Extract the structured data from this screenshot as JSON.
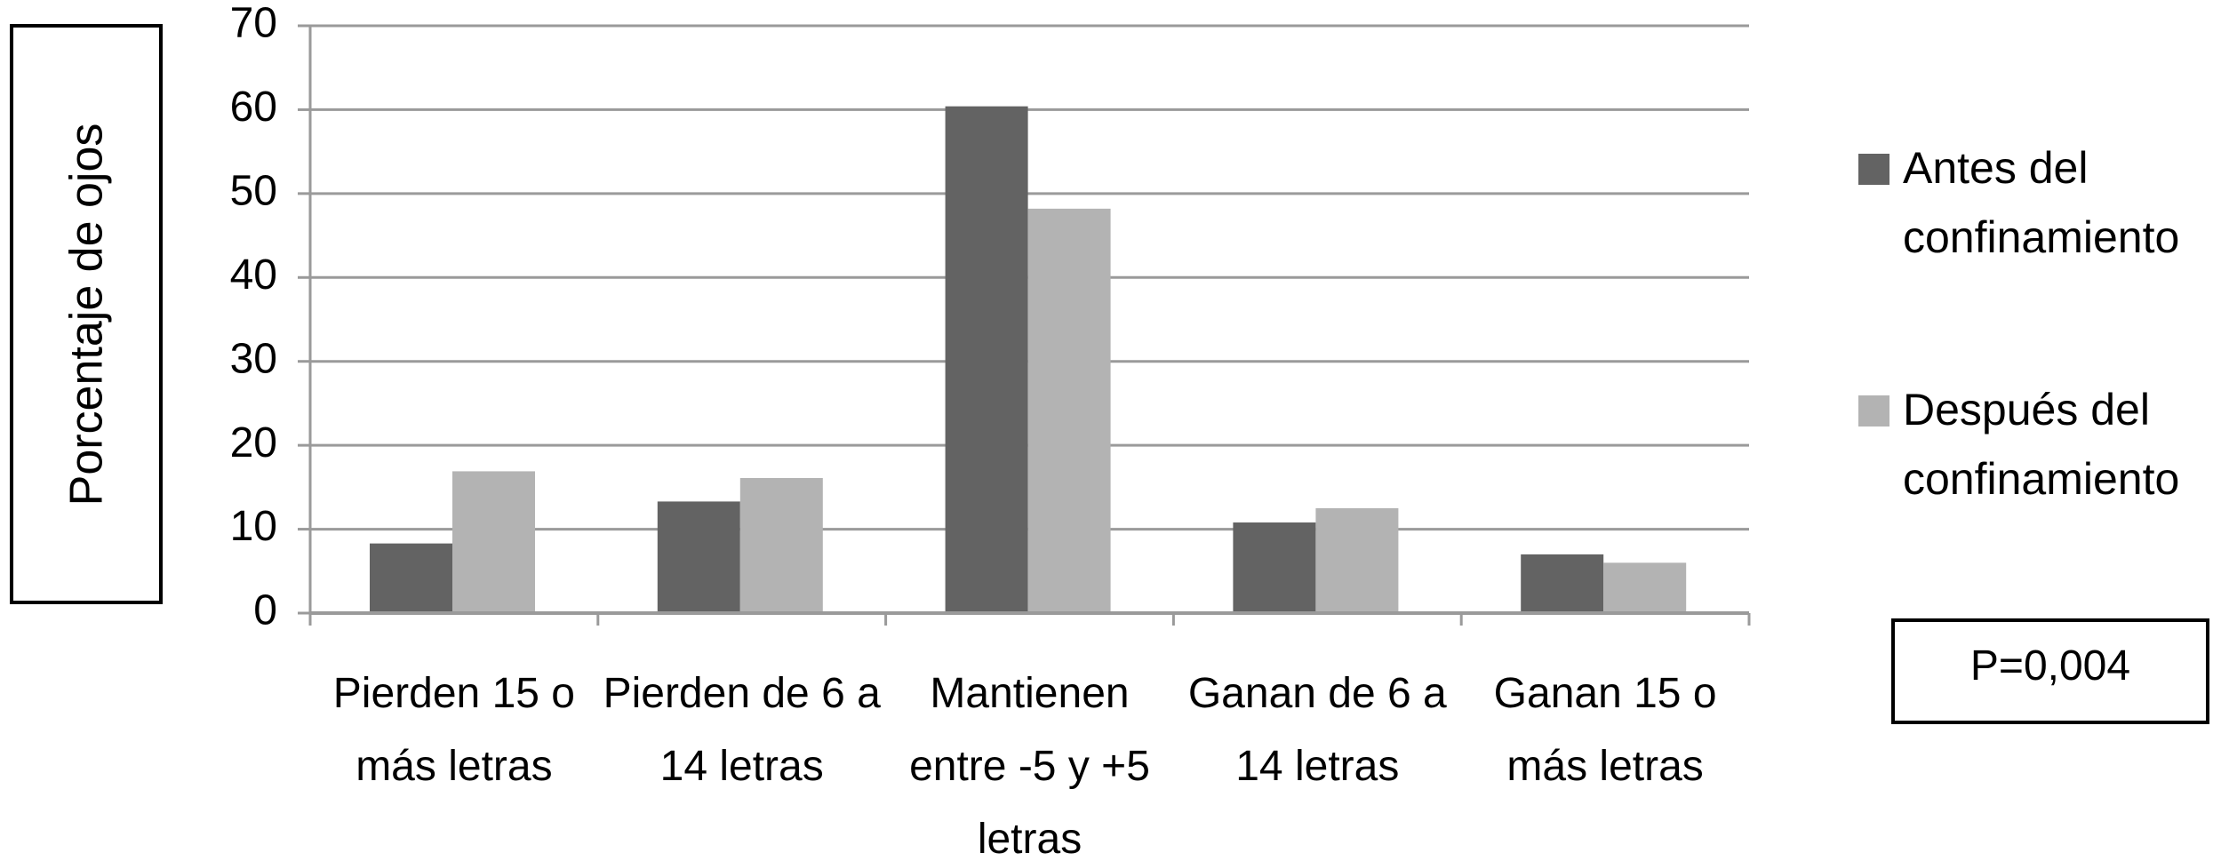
{
  "chart_data": {
    "type": "bar",
    "y_label": "Porcentaje de ojos",
    "annotation": "P=0,004",
    "categories": [
      "Pierden 15 o más letras",
      "Pierden de 6 a 14 letras",
      "Mantienen entre -5 y +5 letras",
      "Ganan de 6 a 14 letras",
      "Ganan 15 o más letras"
    ],
    "series": [
      {
        "name": "Antes del confinamiento",
        "color": "#636363",
        "values": [
          8.3,
          13.3,
          60.4,
          10.8,
          7.0
        ]
      },
      {
        "name": "Después del confinamiento",
        "color": "#b3b3b3",
        "values": [
          16.9,
          16.1,
          48.2,
          12.5,
          6.0
        ]
      }
    ],
    "ylim": [
      0,
      70
    ],
    "yticks": [
      0,
      10,
      20,
      30,
      40,
      50,
      60,
      70
    ],
    "grid": true,
    "legend": "right"
  }
}
